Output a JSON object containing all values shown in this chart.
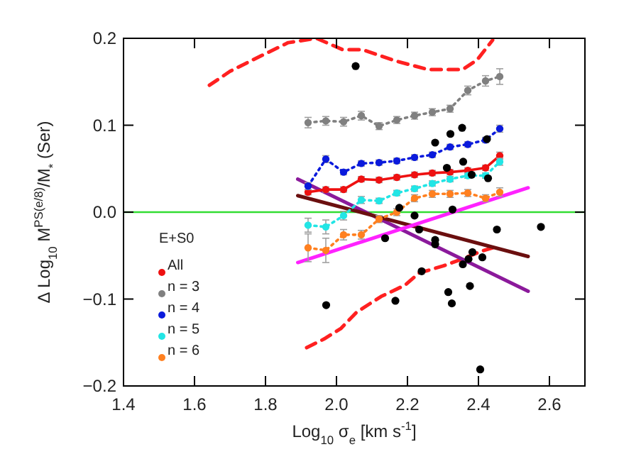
{
  "chart_data": {
    "type": "line",
    "xlabel": "Log$_{10}$ σ$_{e}$ [km s$^{-1}$]",
    "ylabel": "Δ Log$_{10}$ M$^{PS(e/8)}$/M$_{*}$ (Ser)",
    "legend_title": "E+S0",
    "xlim": [
      1.4,
      2.7
    ],
    "xticks": [
      {
        "value": 1.4,
        "label": "1.4"
      },
      {
        "value": 1.6,
        "label": "1.6"
      },
      {
        "value": 1.8,
        "label": "1.8"
      },
      {
        "value": 2.0,
        "label": "2.0"
      },
      {
        "value": 2.2,
        "label": "2.2"
      },
      {
        "value": 2.4,
        "label": "2.4"
      },
      {
        "value": 2.6,
        "label": "2.6"
      }
    ],
    "ylim": [
      -0.2,
      0.2
    ],
    "yticks": [
      {
        "value": -0.2,
        "label": "−0.2"
      },
      {
        "value": -0.1,
        "label": "−0.1"
      },
      {
        "value": 0,
        "label": "0.0"
      },
      {
        "value": 0.1,
        "label": "0.1"
      },
      {
        "value": 0.2,
        "label": "0.2"
      }
    ],
    "grid": false,
    "legend": "left",
    "ref_lines": [
      {
        "axis": "y",
        "value": 0,
        "color": "#33dd33",
        "line_style": "solid"
      }
    ],
    "series": [
      {
        "type": "scatter",
        "color": "#000000",
        "marker": "circle",
        "x": [
          2.054,
          2.278,
          2.321,
          2.354,
          2.311,
          2.357,
          2.381,
          2.424,
          2.427,
          2.177,
          2.327,
          2.22,
          2.137,
          2.233,
          2.278,
          2.278,
          2.452,
          2.576,
          2.24,
          2.383,
          2.372,
          2.356,
          2.411,
          2.376,
          2.315,
          2.325,
          2.166,
          1.971,
          2.405
        ],
        "values": [
          0.168,
          0.08,
          0.09,
          0.097,
          0.051,
          0.058,
          0.043,
          0.084,
          0.039,
          0.005,
          0.003,
          -0.004,
          -0.03,
          -0.02,
          -0.032,
          -0.037,
          -0.02,
          -0.017,
          -0.068,
          -0.046,
          -0.054,
          -0.06,
          -0.052,
          -0.085,
          -0.092,
          -0.105,
          -0.102,
          -0.107,
          -0.181
        ]
      },
      {
        "type": "line",
        "color": "#ff2020",
        "marker": "none",
        "line_style": "dashed",
        "x": [
          1.642,
          1.7,
          1.783,
          1.864,
          1.944,
          2.017,
          2.073,
          2.166,
          2.259,
          2.355,
          2.396,
          2.44
        ],
        "values": [
          0.146,
          0.162,
          0.179,
          0.195,
          0.2,
          0.187,
          0.187,
          0.174,
          0.164,
          0.164,
          0.175,
          0.198
        ]
      },
      {
        "type": "line",
        "color": "#ff2020",
        "marker": "none",
        "line_style": "dashed",
        "x": [
          1.916,
          1.965,
          2.012,
          2.057,
          2.126,
          2.193,
          2.233,
          2.3,
          2.354,
          2.408,
          2.448
        ],
        "values": [
          -0.156,
          -0.146,
          -0.134,
          -0.115,
          -0.097,
          -0.084,
          -0.07,
          -0.062,
          -0.054,
          -0.045,
          -0.04
        ]
      },
      {
        "type": "line",
        "color": "#8b1a9b",
        "marker": "none",
        "line_style": "solid",
        "x": [
          1.891,
          2.54
        ],
        "values": [
          0.038,
          -0.091
        ]
      },
      {
        "type": "line",
        "color": "#6b0f0f",
        "marker": "none",
        "line_style": "solid",
        "x": [
          1.891,
          2.54
        ],
        "values": [
          0.019,
          -0.051
        ]
      },
      {
        "type": "line",
        "color": "#ff22ff",
        "marker": "none",
        "line_style": "solid",
        "x": [
          1.891,
          2.54
        ],
        "values": [
          -0.058,
          0.028
        ]
      },
      {
        "name": "All",
        "color": "#ee1111",
        "marker": "circle",
        "line_style": "solid",
        "x": [
          1.92,
          1.97,
          2.02,
          2.07,
          2.12,
          2.17,
          2.22,
          2.27,
          2.32,
          2.37,
          2.42,
          2.46
        ],
        "values": [
          0.023,
          0.026,
          0.026,
          0.038,
          0.037,
          0.04,
          0.043,
          0.045,
          0.046,
          0.048,
          0.051,
          0.065
        ],
        "errors": [
          0.003,
          0.003,
          0.003,
          0.003,
          0.003,
          0.003,
          0.003,
          0.003,
          0.003,
          0.003,
          0.003,
          0.004
        ]
      },
      {
        "name": "n = 3",
        "color": "#808080",
        "marker": "circle",
        "line_style": "dotted",
        "x": [
          1.92,
          1.97,
          2.02,
          2.07,
          2.12,
          2.17,
          2.22,
          2.27,
          2.32,
          2.37,
          2.42,
          2.46
        ],
        "values": [
          0.103,
          0.105,
          0.104,
          0.111,
          0.099,
          0.106,
          0.111,
          0.115,
          0.119,
          0.14,
          0.151,
          0.156
        ],
        "errors": [
          0.006,
          0.005,
          0.005,
          0.005,
          0.004,
          0.004,
          0.004,
          0.004,
          0.004,
          0.005,
          0.006,
          0.009
        ]
      },
      {
        "name": "n = 4",
        "color": "#0a1adc",
        "marker": "circle",
        "line_style": "dotted",
        "x": [
          1.92,
          1.97,
          2.02,
          2.07,
          2.12,
          2.17,
          2.22,
          2.27,
          2.32,
          2.37,
          2.42,
          2.46
        ],
        "values": [
          0.03,
          0.061,
          0.046,
          0.056,
          0.057,
          0.059,
          0.063,
          0.066,
          0.075,
          0.078,
          0.083,
          0.096
        ],
        "errors": [
          0.004,
          0.004,
          0.003,
          0.003,
          0.003,
          0.003,
          0.003,
          0.003,
          0.003,
          0.003,
          0.003,
          0.004
        ]
      },
      {
        "name": "n = 5",
        "color": "#22e5e5",
        "marker": "circle",
        "line_style": "dotted",
        "x": [
          1.92,
          1.97,
          2.02,
          2.07,
          2.12,
          2.17,
          2.22,
          2.27,
          2.32,
          2.37,
          2.42,
          2.46
        ],
        "values": [
          -0.015,
          -0.017,
          -0.004,
          0.014,
          0.013,
          0.022,
          0.027,
          0.033,
          0.038,
          0.042,
          0.042,
          0.058
        ],
        "errors": [
          0.008,
          0.008,
          0.005,
          0.004,
          0.003,
          0.003,
          0.003,
          0.003,
          0.003,
          0.003,
          0.003,
          0.004
        ]
      },
      {
        "name": "n = 6",
        "color": "#ff8020",
        "marker": "circle",
        "line_style": "dotted",
        "x": [
          1.92,
          1.97,
          2.02,
          2.07,
          2.12,
          2.17,
          2.22,
          2.27,
          2.32,
          2.37,
          2.42,
          2.46
        ],
        "values": [
          -0.041,
          -0.044,
          -0.026,
          -0.026,
          -0.008,
          0.0,
          0.016,
          0.021,
          0.021,
          0.022,
          0.016,
          0.023
        ],
        "errors": [
          0.016,
          0.014,
          0.006,
          0.005,
          0.004,
          0.004,
          0.004,
          0.004,
          0.004,
          0.004,
          0.004,
          0.005
        ]
      }
    ]
  }
}
